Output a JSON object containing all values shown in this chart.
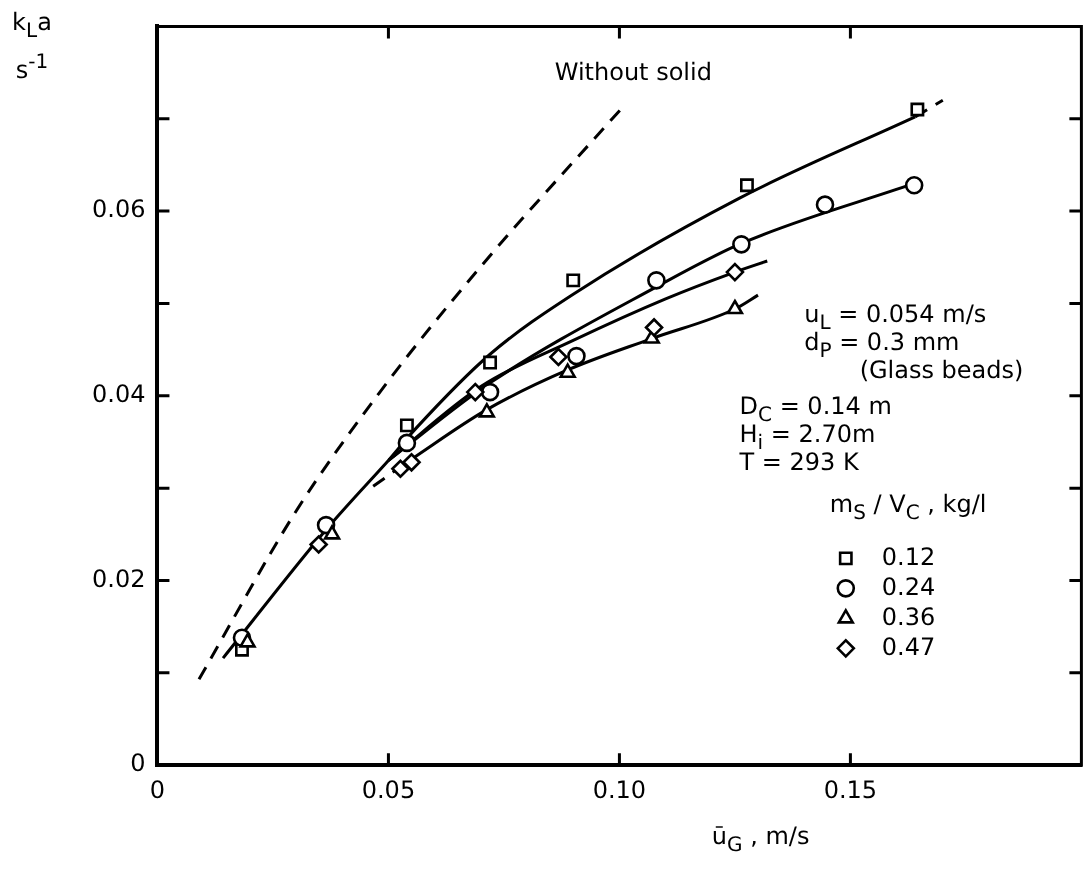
{
  "chart_data": {
    "type": "scatter",
    "xlabel": "ū$_{G}$ ,  m/s",
    "ylabel": "k$_{L}$a s$^{-1}$",
    "legend_title": "m$_{S}$ / V$_{C}$ , kg/l",
    "legend": "right",
    "grid": false,
    "xlim": [
      0,
      0.2
    ],
    "xticks": [
      0,
      0.05,
      {
        "value": 0.1,
        "label": "0.10"
      },
      0.15
    ],
    "ylim": [
      0,
      0.08
    ],
    "yticks": [
      0,
      {
        "value": 0.01,
        "label": null
      },
      0.02,
      {
        "value": 0.03,
        "label": null
      },
      0.04,
      {
        "value": 0.05,
        "label": null
      },
      0.06,
      {
        "value": 0.07,
        "label": null
      }
    ],
    "annotations": [
      "Without solid",
      "u$_{L}$ = 0.054 m/s",
      "d$_{P}$ = 0.3 mm",
      "(Glass beads)",
      "D$_{C}$ = 0.14 m",
      "H$_{i}$ = 2.70m",
      "T  = 293 K"
    ],
    "series": [
      {
        "name": "0.12",
        "color": "#000000",
        "marker": "square",
        "x": [
          0.0183,
          0.054,
          0.072,
          0.09,
          0.1276,
          0.1645
        ],
        "values": [
          0.0125,
          0.0368,
          0.0436,
          0.0525,
          0.0628,
          0.071
        ]
      },
      {
        "name": "0.24",
        "color": "#000000",
        "marker": "circle",
        "x": [
          0.0183,
          0.0365,
          0.054,
          0.072,
          0.0907,
          0.108,
          0.1264,
          0.1445,
          0.1638
        ],
        "values": [
          0.0138,
          0.026,
          0.0349,
          0.0404,
          0.0443,
          0.0525,
          0.0564,
          0.0607,
          0.0628
        ]
      },
      {
        "name": "0.36",
        "color": "#000000",
        "marker": "triangle",
        "x": [
          0.0195,
          0.0378,
          0.0713,
          0.0888,
          0.107,
          0.125
        ],
        "values": [
          0.0133,
          0.025,
          0.0382,
          0.0425,
          0.0462,
          0.0494
        ]
      },
      {
        "name": "0.47",
        "color": "#000000",
        "marker": "diamond",
        "x": [
          0.0349,
          0.0526,
          0.055,
          0.0688,
          0.0868,
          0.1075,
          0.125
        ],
        "values": [
          0.0239,
          0.0321,
          0.0328,
          0.0404,
          0.0442,
          0.0474,
          0.0534
        ]
      },
      {
        "type": "line",
        "color": "#000000",
        "marker": "none",
        "line_style": "dashed",
        "x": [
          0.009,
          0.03,
          0.048,
          0.07,
          0.1006
        ],
        "values": [
          0.0093,
          0.0275,
          0.0403,
          0.054,
          0.0712
        ]
      },
      {
        "type": "line",
        "color": "#000000",
        "marker": "none",
        "line_style": "solid",
        "x": [
          0.0142,
          0.0365,
          0.05
        ],
        "values": [
          0.0116,
          0.0255,
          0.033
        ]
      },
      {
        "type": "line",
        "color": "#000000",
        "marker": "none",
        "line_style": "solid",
        "x": [
          0.05,
          0.056,
          0.072,
          0.09,
          0.126,
          0.164
        ],
        "values": [
          0.033,
          0.0365,
          0.0445,
          0.051,
          0.0614,
          0.0702
        ]
      },
      {
        "type": "line",
        "color": "#000000",
        "marker": "none",
        "line_style": "dashed",
        "x": [
          0.164,
          0.17
        ],
        "values": [
          0.0702,
          0.072
        ]
      },
      {
        "type": "line",
        "color": "#000000",
        "marker": "none",
        "line_style": "solid",
        "x": [
          0.05,
          0.072,
          0.108,
          0.1264,
          0.1638
        ],
        "values": [
          0.033,
          0.0414,
          0.0518,
          0.0565,
          0.063
        ]
      },
      {
        "type": "line",
        "color": "#000000",
        "marker": "none",
        "line_style": "solid",
        "x": [
          0.05,
          0.07,
          0.09,
          0.11,
          0.125,
          0.132
        ],
        "values": [
          0.033,
          0.041,
          0.046,
          0.0505,
          0.0534,
          0.0546
        ]
      },
      {
        "type": "line",
        "color": "#000000",
        "marker": "none",
        "line_style": "dashed",
        "x": [
          0.0467,
          0.054
        ],
        "values": [
          0.0302,
          0.0328
        ]
      },
      {
        "type": "line",
        "color": "#000000",
        "marker": "none",
        "line_style": "solid",
        "x": [
          0.054,
          0.0713,
          0.0888,
          0.107,
          0.125,
          0.13
        ],
        "values": [
          0.0328,
          0.0385,
          0.0428,
          0.0462,
          0.0494,
          0.0509
        ]
      }
    ]
  }
}
